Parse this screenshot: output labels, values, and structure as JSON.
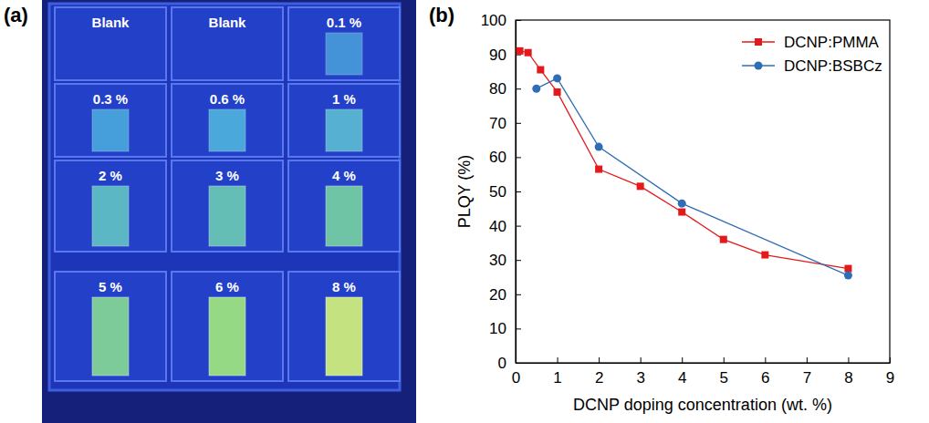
{
  "panel_labels": [
    "(a)",
    "(b)"
  ],
  "photo": {
    "samples": [
      "Blank",
      "Blank",
      "0.1 %",
      "0.3 %",
      "0.6 %",
      "1 %",
      "2 %",
      "3 %",
      "4 %",
      "5 %",
      "6 %",
      "8 %"
    ]
  },
  "chart_data": {
    "type": "line",
    "x_label": "DCNP doping concentration (wt. %)",
    "y_label": "PLQY (%)",
    "xlim": [
      0,
      9
    ],
    "xticks": [
      0,
      1,
      2,
      3,
      4,
      5,
      6,
      7,
      8,
      9
    ],
    "ylim": [
      0,
      100
    ],
    "yticks": [
      0,
      10,
      20,
      30,
      40,
      50,
      60,
      70,
      80,
      90,
      100
    ],
    "legend": "upper right",
    "series": [
      {
        "name": "DCNP:PMMA",
        "color": "#e31a1c",
        "marker": "square",
        "line_style": "solid",
        "x": [
          0.1,
          0.3,
          0.6,
          1,
          2,
          3,
          4,
          5,
          6,
          8
        ],
        "values": [
          91,
          90.5,
          85.5,
          79,
          56.5,
          51.5,
          44,
          36,
          31.5,
          27.5
        ]
      },
      {
        "name": "DCNP:BSBCz",
        "color": "#2f6eb5",
        "marker": "circle",
        "line_style": "solid",
        "x": [
          0.5,
          1,
          2,
          4,
          8
        ],
        "values": [
          80,
          83,
          63,
          46.5,
          25.5
        ]
      }
    ]
  }
}
